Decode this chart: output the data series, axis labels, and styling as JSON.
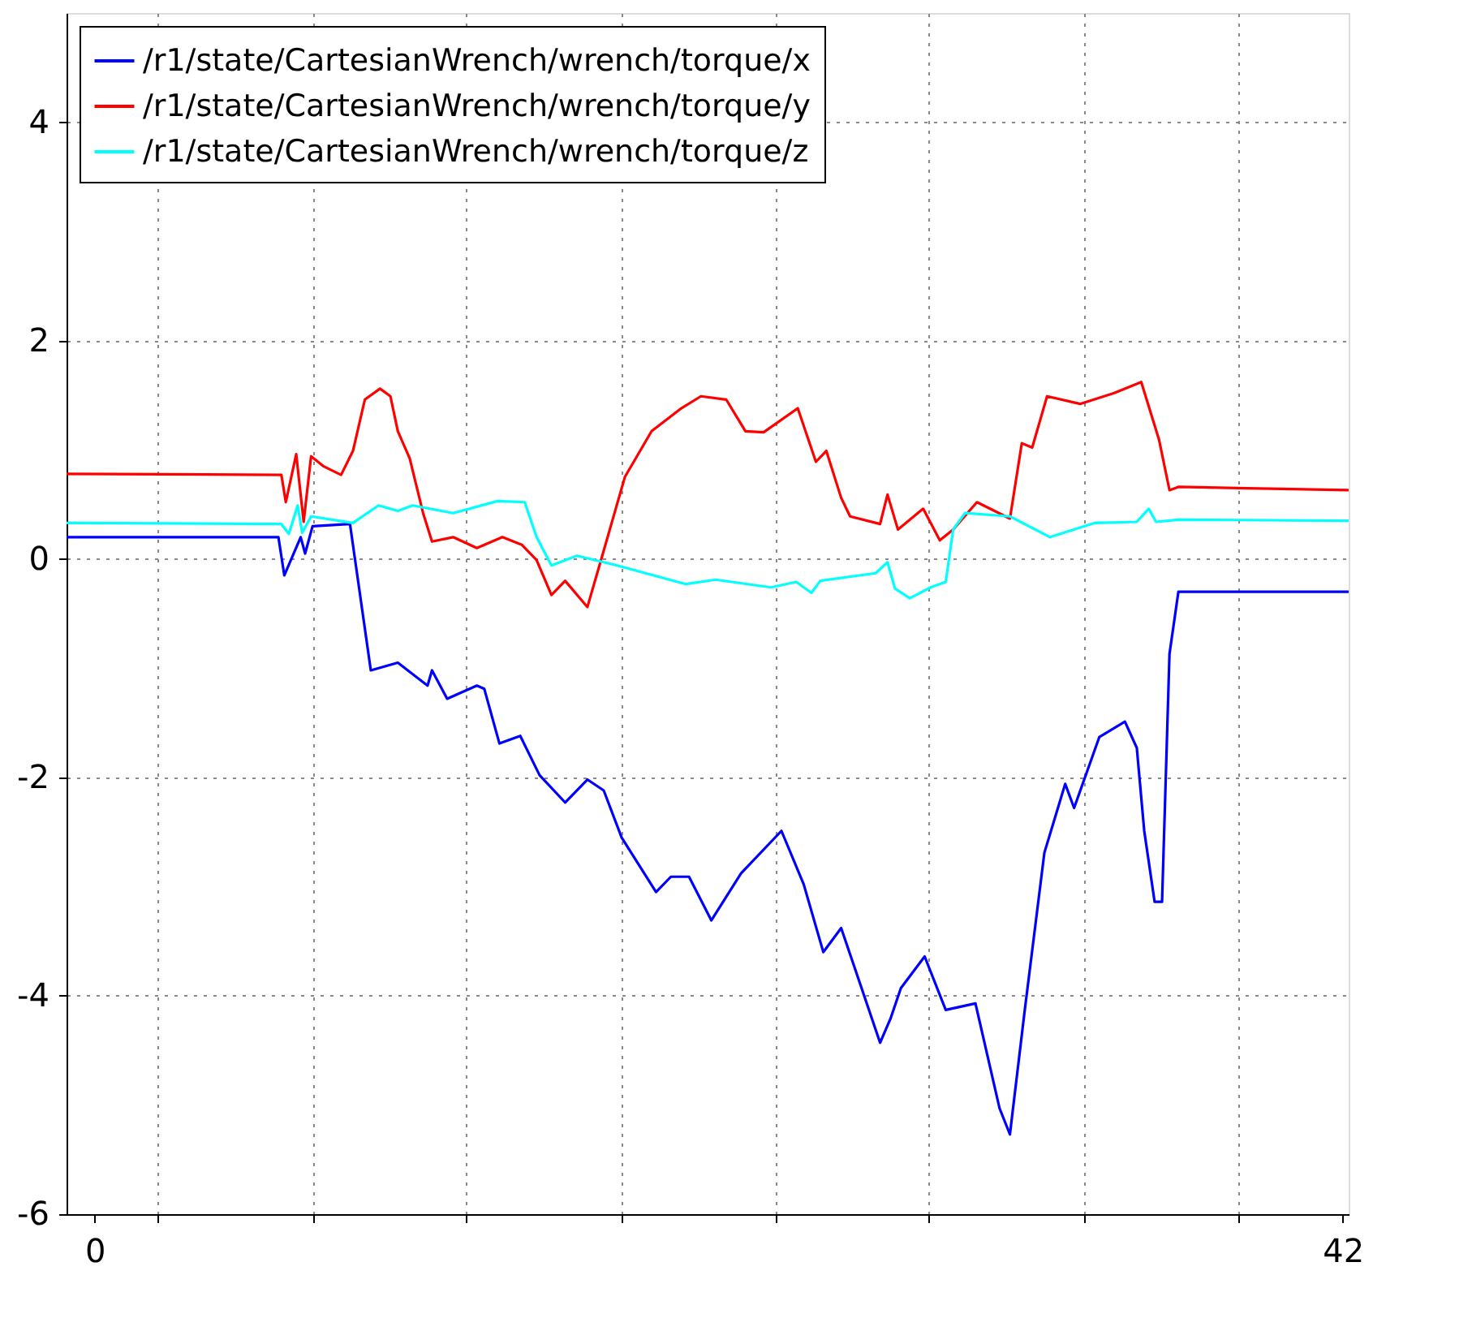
{
  "chart_data": {
    "type": "line",
    "xlim": [
      -0.95,
      42.2
    ],
    "xticks": [
      0,
      {
        "value": 2.11,
        "label": null
      },
      {
        "value": 7.34,
        "label": null
      },
      {
        "value": 12.51,
        "label": null
      },
      {
        "value": 17.73,
        "label": null
      },
      {
        "value": 22.91,
        "label": null
      },
      {
        "value": 28.08,
        "label": null
      },
      {
        "value": 33.31,
        "label": null
      },
      {
        "value": 38.48,
        "label": null
      },
      42
    ],
    "ylim": [
      -6,
      5
    ],
    "yticks": [
      -6,
      -4,
      -2,
      0,
      2,
      4
    ],
    "grid": true,
    "legend": "top left",
    "line_style": "solid",
    "series": [
      {
        "name": "/r1/state/CartesianWrench/wrench/torque/x",
        "color": "#0000ff",
        "x": [
          -0.95,
          6.18,
          6.38,
          6.93,
          7.08,
          7.33,
          8.59,
          9.29,
          10.2,
          11.2,
          11.35,
          11.86,
          12.86,
          13.11,
          13.62,
          14.32,
          14.97,
          15.83,
          16.58,
          17.13,
          17.73,
          18.89,
          19.39,
          20.0,
          20.75,
          21.75,
          23.11,
          23.86,
          24.52,
          25.12,
          25.62,
          26.43,
          26.78,
          27.13,
          27.93,
          28.64,
          29.64,
          30.45,
          30.8,
          31.3,
          31.96,
          32.66,
          32.96,
          33.81,
          34.67,
          35.07,
          35.32,
          35.67,
          35.92,
          36.17,
          36.47,
          42.2
        ],
        "values": [
          0.2,
          0.2,
          -0.15,
          0.2,
          0.05,
          0.3,
          0.32,
          -1.02,
          -0.95,
          -1.16,
          -1.02,
          -1.28,
          -1.16,
          -1.19,
          -1.69,
          -1.62,
          -1.98,
          -2.23,
          -2.02,
          -2.12,
          -2.55,
          -3.05,
          -2.91,
          -2.91,
          -3.31,
          -2.88,
          -2.49,
          -2.98,
          -3.6,
          -3.38,
          -3.78,
          -4.43,
          -4.21,
          -3.93,
          -3.64,
          -4.13,
          -4.07,
          -5.03,
          -5.27,
          -4.13,
          -2.69,
          -2.06,
          -2.28,
          -1.63,
          -1.49,
          -1.73,
          -2.49,
          -3.14,
          -3.14,
          -0.87,
          -0.3,
          -0.3
        ]
      },
      {
        "name": "/r1/state/CartesianWrench/wrench/torque/y",
        "color": "#ff0000",
        "x": [
          -0.95,
          6.28,
          6.43,
          6.78,
          7.03,
          7.28,
          7.69,
          8.29,
          8.69,
          9.09,
          9.6,
          9.95,
          10.2,
          10.6,
          11.05,
          11.35,
          12.06,
          12.86,
          13.72,
          14.37,
          14.87,
          15.37,
          15.83,
          16.58,
          17.08,
          17.84,
          18.74,
          19.74,
          20.4,
          21.25,
          21.9,
          22.51,
          23.66,
          24.27,
          24.62,
          25.12,
          25.42,
          26.43,
          26.68,
          27.03,
          27.88,
          28.44,
          28.89,
          29.69,
          30.8,
          31.2,
          31.55,
          32.05,
          33.16,
          34.31,
          35.22,
          35.82,
          36.17,
          36.47,
          42.2
        ],
        "values": [
          0.78,
          0.77,
          0.52,
          0.96,
          0.34,
          0.94,
          0.85,
          0.77,
          0.99,
          1.46,
          1.56,
          1.49,
          1.17,
          0.92,
          0.42,
          0.16,
          0.2,
          0.1,
          0.2,
          0.13,
          -0.01,
          -0.33,
          -0.2,
          -0.44,
          0.03,
          0.75,
          1.17,
          1.38,
          1.49,
          1.46,
          1.17,
          1.16,
          1.38,
          0.89,
          0.99,
          0.56,
          0.39,
          0.32,
          0.59,
          0.27,
          0.46,
          0.17,
          0.27,
          0.52,
          0.37,
          1.06,
          1.02,
          1.49,
          1.42,
          1.52,
          1.62,
          1.09,
          0.63,
          0.66,
          0.63
        ]
      },
      {
        "name": "/r1/state/CartesianWrench/wrench/torque/z",
        "color": "#00ffff",
        "x": [
          -0.95,
          6.28,
          6.53,
          6.83,
          6.98,
          7.28,
          8.69,
          9.55,
          10.2,
          10.7,
          12.06,
          13.56,
          14.47,
          14.87,
          15.37,
          16.23,
          17.58,
          19.89,
          20.9,
          22.76,
          23.61,
          24.12,
          24.42,
          26.28,
          26.68,
          26.93,
          27.43,
          28.13,
          28.64,
          28.89,
          29.29,
          30.8,
          32.15,
          33.66,
          35.07,
          35.47,
          35.72,
          36.47,
          42.2
        ],
        "values": [
          0.33,
          0.32,
          0.23,
          0.49,
          0.24,
          0.39,
          0.33,
          0.49,
          0.44,
          0.49,
          0.42,
          0.53,
          0.52,
          0.2,
          -0.06,
          0.03,
          -0.06,
          -0.23,
          -0.19,
          -0.26,
          -0.21,
          -0.31,
          -0.2,
          -0.13,
          -0.03,
          -0.27,
          -0.36,
          -0.26,
          -0.21,
          0.27,
          0.42,
          0.39,
          0.2,
          0.33,
          0.34,
          0.46,
          0.34,
          0.36,
          0.35
        ]
      }
    ]
  }
}
